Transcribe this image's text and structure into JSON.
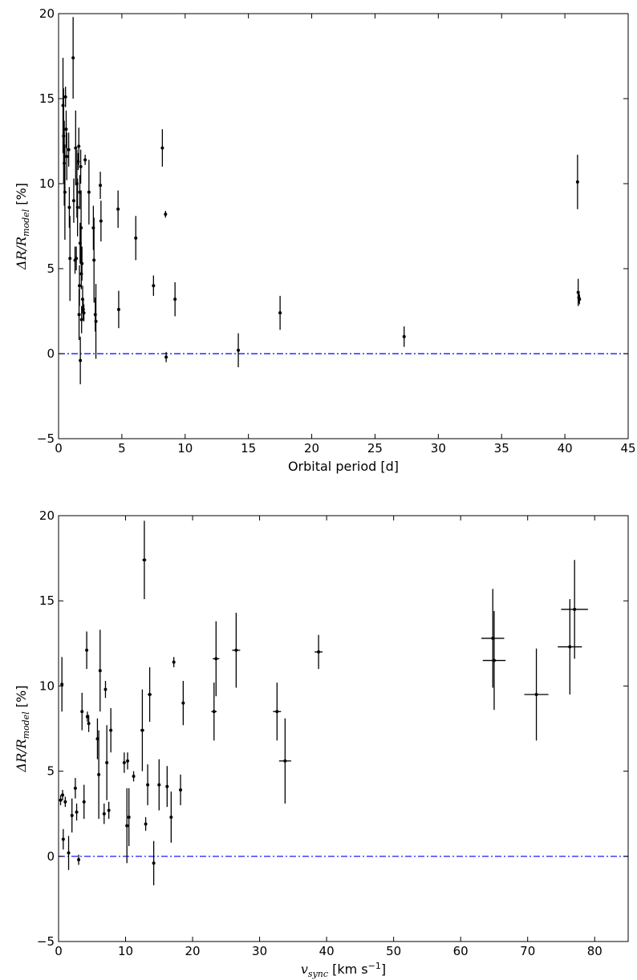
{
  "chart_data": [
    {
      "type": "scatter",
      "xlabel": "Orbital period [d]",
      "ylabel": "ΔR/R_model [%]",
      "ylabel_main": "ΔR/R",
      "ylabel_sub": "model",
      "ylabel_unit": " [%]",
      "xlim": [
        0,
        45
      ],
      "ylim": [
        -5,
        20
      ],
      "xticks": [
        0,
        5,
        10,
        15,
        20,
        25,
        30,
        35,
        40,
        45
      ],
      "yticks": [
        -5,
        0,
        5,
        10,
        15,
        20
      ],
      "reference_line": {
        "y": 0,
        "style": "dash-dot",
        "color": "#0000ff"
      },
      "marker_color": "#000000",
      "points": [
        {
          "x": 0.35,
          "y": 14.6,
          "yerr": 2.8
        },
        {
          "x": 0.4,
          "y": 12.8,
          "yerr": 2.8
        },
        {
          "x": 0.45,
          "y": 11.2,
          "yerr": 2.5
        },
        {
          "x": 0.5,
          "y": 9.5,
          "yerr": 2.8
        },
        {
          "x": 0.55,
          "y": 15.1,
          "yerr": 0.6
        },
        {
          "x": 0.6,
          "y": 13.2,
          "yerr": 1.1
        },
        {
          "x": 0.65,
          "y": 11.6,
          "yerr": 1.4
        },
        {
          "x": 0.8,
          "y": 12.0,
          "yerr": 1.0
        },
        {
          "x": 0.85,
          "y": 8.6,
          "yerr": 1.2
        },
        {
          "x": 0.9,
          "y": 5.6,
          "yerr": 2.5
        },
        {
          "x": 1.15,
          "y": 17.4,
          "yerr": 2.4
        },
        {
          "x": 1.2,
          "y": 9.0,
          "yerr": 1.3
        },
        {
          "x": 1.3,
          "y": 5.5,
          "yerr": 0.8
        },
        {
          "x": 1.35,
          "y": 12.1,
          "yerr": 2.2
        },
        {
          "x": 1.4,
          "y": 5.6,
          "yerr": 0.7
        },
        {
          "x": 1.45,
          "y": 10.0,
          "yerr": 2.0
        },
        {
          "x": 1.5,
          "y": 8.6,
          "yerr": 1.7
        },
        {
          "x": 1.55,
          "y": 11.3,
          "yerr": 0.5
        },
        {
          "x": 1.6,
          "y": 12.2,
          "yerr": 1.1
        },
        {
          "x": 1.62,
          "y": 2.3,
          "yerr": 1.5
        },
        {
          "x": 1.65,
          "y": 4.0,
          "yerr": 1.2
        },
        {
          "x": 1.68,
          "y": 9.5,
          "yerr": 1.0
        },
        {
          "x": 1.7,
          "y": 6.5,
          "yerr": 1.2
        },
        {
          "x": 1.72,
          "y": -0.4,
          "yerr": 1.4
        },
        {
          "x": 1.75,
          "y": 11.0,
          "yerr": 1.0
        },
        {
          "x": 1.78,
          "y": 7.4,
          "yerr": 2.2
        },
        {
          "x": 1.8,
          "y": 4.7,
          "yerr": 0.9
        },
        {
          "x": 1.82,
          "y": 2.0,
          "yerr": 0.8
        },
        {
          "x": 1.85,
          "y": 5.3,
          "yerr": 1.0
        },
        {
          "x": 1.9,
          "y": 3.2,
          "yerr": 0.8
        },
        {
          "x": 1.95,
          "y": 2.6,
          "yerr": 0.6
        },
        {
          "x": 2.0,
          "y": 2.4,
          "yerr": 0.5
        },
        {
          "x": 2.1,
          "y": 11.4,
          "yerr": 0.3
        },
        {
          "x": 2.4,
          "y": 9.5,
          "yerr": 1.9
        },
        {
          "x": 2.75,
          "y": 7.4,
          "yerr": 1.3
        },
        {
          "x": 2.8,
          "y": 5.5,
          "yerr": 2.5
        },
        {
          "x": 2.9,
          "y": 2.3,
          "yerr": 1.0
        },
        {
          "x": 2.95,
          "y": 1.9,
          "yerr": 2.2
        },
        {
          "x": 3.3,
          "y": 9.9,
          "yerr": 0.8
        },
        {
          "x": 3.35,
          "y": 7.8,
          "yerr": 1.2
        },
        {
          "x": 4.7,
          "y": 8.5,
          "yerr": 1.1
        },
        {
          "x": 4.75,
          "y": 2.6,
          "yerr": 1.1
        },
        {
          "x": 6.1,
          "y": 6.8,
          "yerr": 1.3
        },
        {
          "x": 7.5,
          "y": 4.0,
          "yerr": 0.6
        },
        {
          "x": 8.2,
          "y": 12.1,
          "yerr": 1.1
        },
        {
          "x": 8.45,
          "y": 8.2,
          "yerr": 0.2
        },
        {
          "x": 8.5,
          "y": -0.2,
          "yerr": 0.3
        },
        {
          "x": 9.2,
          "y": 3.2,
          "yerr": 1.0
        },
        {
          "x": 14.2,
          "y": 0.2,
          "yerr": 1.0
        },
        {
          "x": 17.5,
          "y": 2.4,
          "yerr": 1.0
        },
        {
          "x": 27.3,
          "y": 1.0,
          "yerr": 0.6
        },
        {
          "x": 41.0,
          "y": 10.1,
          "yerr": 1.6
        },
        {
          "x": 41.05,
          "y": 3.6,
          "yerr": 0.8
        },
        {
          "x": 41.1,
          "y": 3.3,
          "yerr": 0.3
        },
        {
          "x": 41.15,
          "y": 3.2,
          "yerr": 0.3
        }
      ]
    },
    {
      "type": "scatter",
      "xlabel": "v_sync [km s⁻¹]",
      "xlabel_main": "v",
      "xlabel_sub": "sync",
      "xlabel_unit": " [km s",
      "xlabel_sup": "−1",
      "xlabel_end": "]",
      "ylabel": "ΔR/R_model [%]",
      "ylabel_main": "ΔR/R",
      "ylabel_sub": "model",
      "ylabel_unit": " [%]",
      "xlim": [
        0,
        85
      ],
      "ylim": [
        -5,
        20
      ],
      "xticks": [
        0,
        10,
        20,
        30,
        40,
        50,
        60,
        70,
        80
      ],
      "yticks": [
        -5,
        0,
        5,
        10,
        15,
        20
      ],
      "reference_line": {
        "y": 0,
        "style": "dash-dot",
        "color": "#0000ff"
      },
      "marker_color": "#000000",
      "points": [
        {
          "x": 0.3,
          "y": 3.3,
          "yerr": 0.3,
          "xerr": 0.1
        },
        {
          "x": 0.6,
          "y": 3.6,
          "yerr": 0.3,
          "xerr": 0.1
        },
        {
          "x": 0.5,
          "y": 10.1,
          "yerr": 1.6,
          "xerr": 0.1
        },
        {
          "x": 0.7,
          "y": 1.0,
          "yerr": 0.6,
          "xerr": 0.1
        },
        {
          "x": 1.0,
          "y": 3.2,
          "yerr": 0.3,
          "xerr": 0.1
        },
        {
          "x": 1.5,
          "y": 0.2,
          "yerr": 1.0,
          "xerr": 0.1
        },
        {
          "x": 2.0,
          "y": 2.4,
          "yerr": 1.0,
          "xerr": 0.1
        },
        {
          "x": 2.5,
          "y": 4.0,
          "yerr": 0.6,
          "xerr": 0.1
        },
        {
          "x": 2.7,
          "y": 2.6,
          "yerr": 0.5,
          "xerr": 0.1
        },
        {
          "x": 3.0,
          "y": -0.2,
          "yerr": 0.3,
          "xerr": 0.1
        },
        {
          "x": 3.5,
          "y": 8.5,
          "yerr": 1.1,
          "xerr": 0.1
        },
        {
          "x": 3.8,
          "y": 3.2,
          "yerr": 1.0,
          "xerr": 0.1
        },
        {
          "x": 4.2,
          "y": 12.1,
          "yerr": 1.1,
          "xerr": 0.1
        },
        {
          "x": 4.3,
          "y": 8.2,
          "yerr": 0.3,
          "xerr": 0.1
        },
        {
          "x": 4.5,
          "y": 7.8,
          "yerr": 0.5,
          "xerr": 0.1
        },
        {
          "x": 5.8,
          "y": 6.9,
          "yerr": 1.2,
          "xerr": 0.1
        },
        {
          "x": 6.0,
          "y": 4.8,
          "yerr": 2.6,
          "xerr": 0.1
        },
        {
          "x": 6.2,
          "y": 10.9,
          "yerr": 2.4,
          "xerr": 0.1
        },
        {
          "x": 6.8,
          "y": 2.5,
          "yerr": 0.6,
          "xerr": 0.1
        },
        {
          "x": 7.0,
          "y": 9.8,
          "yerr": 0.5,
          "xerr": 0.1
        },
        {
          "x": 7.2,
          "y": 5.5,
          "yerr": 2.2,
          "xerr": 0.1
        },
        {
          "x": 7.5,
          "y": 2.7,
          "yerr": 0.5,
          "xerr": 0.1
        },
        {
          "x": 7.8,
          "y": 7.4,
          "yerr": 1.3,
          "xerr": 0.1
        },
        {
          "x": 9.8,
          "y": 5.5,
          "yerr": 0.6,
          "xerr": 0.1
        },
        {
          "x": 10.2,
          "y": 1.8,
          "yerr": 2.2,
          "xerr": 0.1
        },
        {
          "x": 10.3,
          "y": 5.6,
          "yerr": 0.5,
          "xerr": 0.1
        },
        {
          "x": 10.5,
          "y": 2.3,
          "yerr": 1.7,
          "xerr": 0.1
        },
        {
          "x": 11.2,
          "y": 4.7,
          "yerr": 0.3,
          "xerr": 0.1
        },
        {
          "x": 12.5,
          "y": 7.4,
          "yerr": 2.4,
          "xerr": 0.3
        },
        {
          "x": 12.8,
          "y": 17.4,
          "yerr": 2.3,
          "xerr": 0.3
        },
        {
          "x": 13.0,
          "y": 1.9,
          "yerr": 0.4,
          "xerr": 0.1
        },
        {
          "x": 13.3,
          "y": 4.2,
          "yerr": 1.2,
          "xerr": 0.1
        },
        {
          "x": 13.6,
          "y": 9.5,
          "yerr": 1.6,
          "xerr": 0.3
        },
        {
          "x": 14.2,
          "y": -0.4,
          "yerr": 1.3,
          "xerr": 0.1
        },
        {
          "x": 15.0,
          "y": 4.2,
          "yerr": 1.5,
          "xerr": 0.1
        },
        {
          "x": 16.2,
          "y": 4.1,
          "yerr": 1.2,
          "xerr": 0.1
        },
        {
          "x": 16.8,
          "y": 2.3,
          "yerr": 1.5,
          "xerr": 0.1
        },
        {
          "x": 17.2,
          "y": 11.4,
          "yerr": 0.3,
          "xerr": 0.2
        },
        {
          "x": 18.2,
          "y": 3.9,
          "yerr": 0.9,
          "xerr": 0.1
        },
        {
          "x": 18.6,
          "y": 9.0,
          "yerr": 1.3,
          "xerr": 0.2
        },
        {
          "x": 23.2,
          "y": 8.5,
          "yerr": 1.7,
          "xerr": 0.4
        },
        {
          "x": 23.5,
          "y": 11.6,
          "yerr": 2.2,
          "xerr": 0.5
        },
        {
          "x": 26.5,
          "y": 12.1,
          "yerr": 2.2,
          "xerr": 0.6
        },
        {
          "x": 32.6,
          "y": 8.5,
          "yerr": 1.7,
          "xerr": 0.6
        },
        {
          "x": 33.8,
          "y": 5.6,
          "yerr": 2.5,
          "xerr": 0.9
        },
        {
          "x": 38.8,
          "y": 12.0,
          "yerr": 1.0,
          "xerr": 0.6
        },
        {
          "x": 64.8,
          "y": 12.8,
          "yerr": 2.9,
          "xerr": 1.7
        },
        {
          "x": 65.0,
          "y": 11.5,
          "yerr": 2.9,
          "xerr": 1.7
        },
        {
          "x": 71.3,
          "y": 9.5,
          "yerr": 2.7,
          "xerr": 1.8
        },
        {
          "x": 76.3,
          "y": 12.3,
          "yerr": 2.8,
          "xerr": 1.8
        },
        {
          "x": 77.0,
          "y": 14.5,
          "yerr": 2.9,
          "xerr": 2.0
        }
      ]
    }
  ]
}
